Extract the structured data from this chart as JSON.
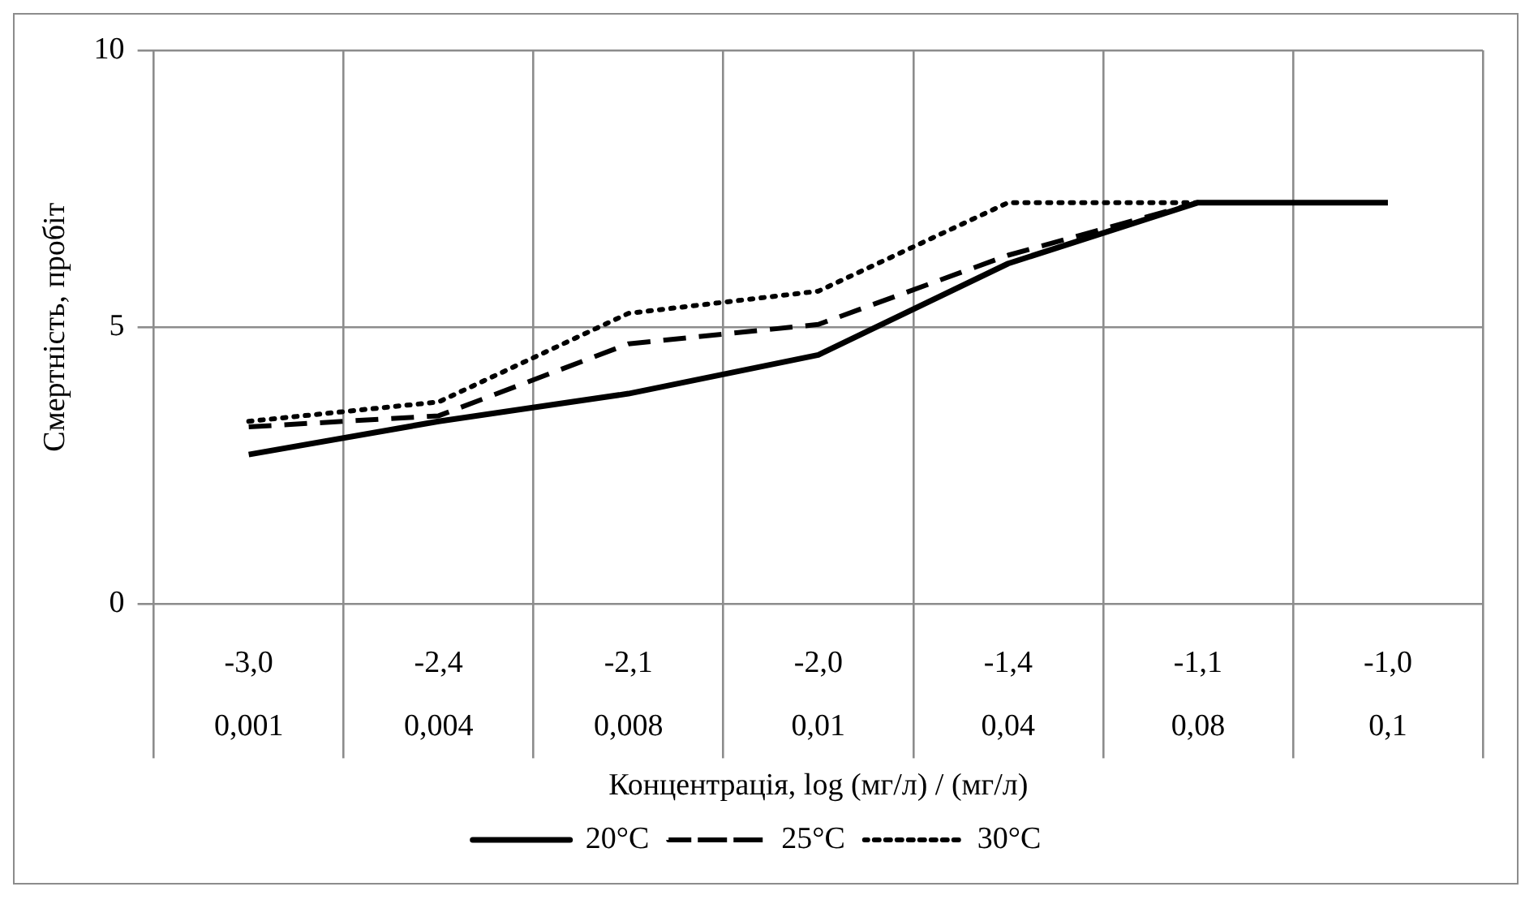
{
  "chart_data": {
    "type": "line",
    "xlabel": "Концентрація, log (мг/л) / (мг/л)",
    "ylabel": "Смертність, пробіт",
    "categories": [
      "-3,0\n0,001",
      "-2,4\n0,004",
      "-2,1\n0,008",
      "-2,0\n0,01",
      "-1,4\n0,04",
      "-1,1\n0,08",
      "-1,0\n0,1"
    ],
    "series": [
      {
        "name": "20°C",
        "color": "#000000",
        "line_style": "solid",
        "values": [
          2.7,
          3.3,
          3.8,
          4.5,
          6.15,
          7.25,
          7.25
        ]
      },
      {
        "name": "25°C",
        "color": "#000000",
        "line_style": "dashed",
        "values": [
          3.2,
          3.4,
          4.7,
          5.05,
          6.3,
          7.25,
          null
        ]
      },
      {
        "name": "30°C",
        "color": "#000000",
        "line_style": "dotted",
        "values": [
          3.3,
          3.65,
          5.25,
          5.65,
          7.25,
          7.25,
          null
        ]
      }
    ],
    "ylim": [
      0,
      10
    ],
    "yticks": [
      0,
      5,
      10
    ],
    "grid": true,
    "legend": "bottom"
  }
}
